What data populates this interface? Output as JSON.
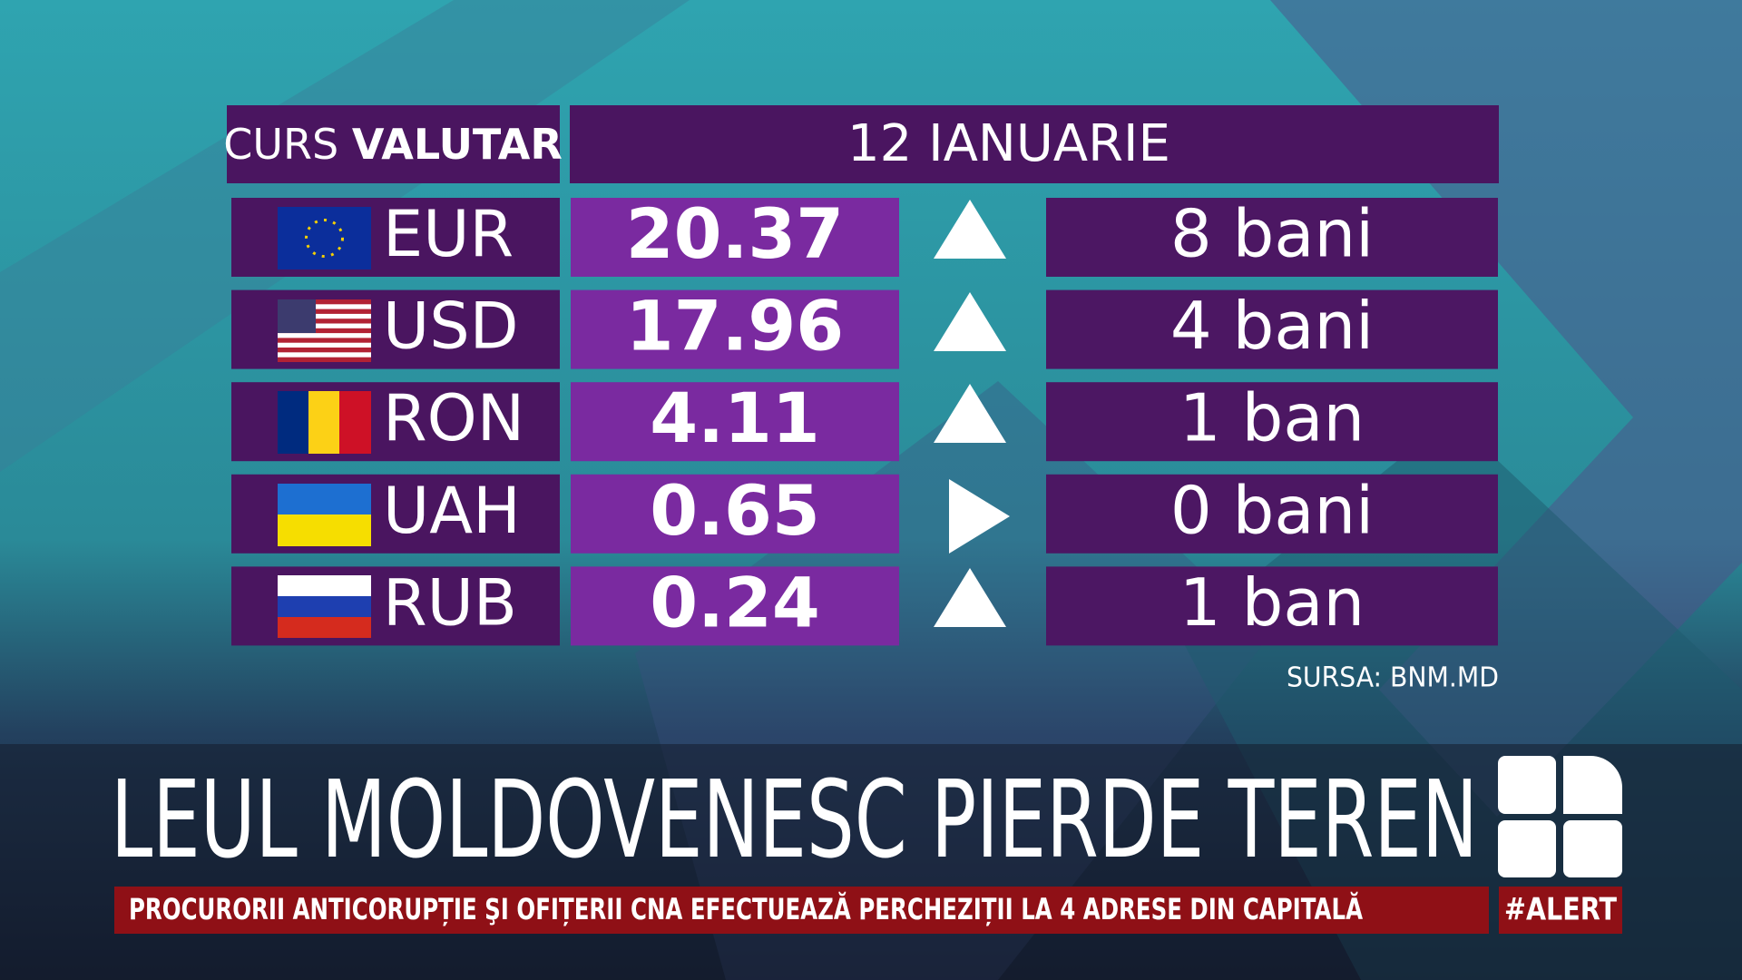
{
  "header": {
    "label_light": "CURS",
    "label_bold": "VALUTAR",
    "date": "12 IANUARIE"
  },
  "table": {
    "rows": [
      {
        "code": "EUR",
        "rate": "20.37",
        "change": "8 bani"
      },
      {
        "code": "USD",
        "rate": "17.96",
        "change": "4 bani"
      },
      {
        "code": "RON",
        "rate": "4.11",
        "change": "1 ban"
      },
      {
        "code": "UAH",
        "rate": "0.65",
        "change": "0 bani"
      },
      {
        "code": "RUB",
        "rate": "0.24",
        "change": "1 ban"
      }
    ]
  },
  "source": "SURSA: BNM.MD",
  "headline": "LEUL MOLDOVENESC PIERDE TEREN",
  "ticker": {
    "text": "PROCURORII ANTICORUPȚIE ŞI OFIȚERII CNA EFECTUEAZĂ PERCHEZIȚII LA 4 ADRESE DIN CAPITALĂ",
    "tag": "#ALERT"
  }
}
